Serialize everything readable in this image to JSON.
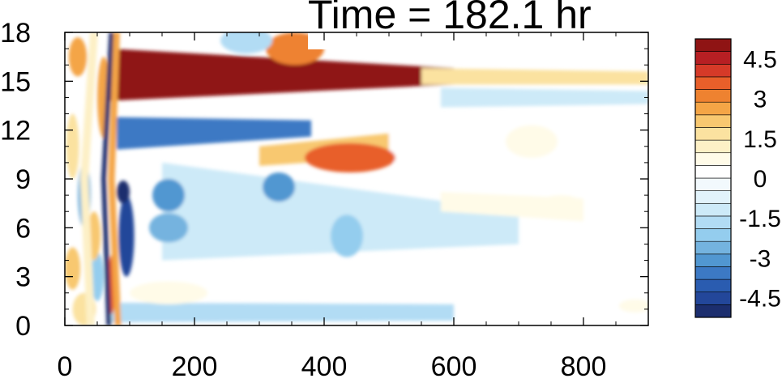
{
  "chart_data": {
    "type": "heatmap",
    "title": "Time = 182.1 hr",
    "xlabel": "",
    "ylabel": "",
    "xlim": [
      0,
      900
    ],
    "ylim": [
      0,
      18
    ],
    "x_ticks": [
      "0",
      "200",
      "400",
      "600",
      "800"
    ],
    "y_ticks": [
      "0",
      "3",
      "6",
      "9",
      "12",
      "15",
      "18"
    ],
    "colorbar": {
      "levels": [
        -5.25,
        -4.75,
        -4.25,
        -3.75,
        -3.25,
        -2.75,
        -2.25,
        -1.75,
        -1.25,
        -0.75,
        -0.25,
        0.25,
        0.75,
        1.25,
        1.75,
        2.25,
        2.75,
        3.25,
        3.75,
        4.25,
        4.75,
        5.25
      ],
      "colors": [
        "#1c2e6e",
        "#23479a",
        "#2a5cb0",
        "#3c79c4",
        "#5197d1",
        "#74b3df",
        "#94cdee",
        "#b2dcf4",
        "#cdeaf8",
        "#e2f3fb",
        "#f2f9fd",
        "#ffffff",
        "#fffbe8",
        "#fdf0c6",
        "#fbe2a0",
        "#f8c870",
        "#f4a546",
        "#ee8230",
        "#e85f2a",
        "#d63a28",
        "#b71f23",
        "#8f1414"
      ],
      "labels": [
        "4.5",
        "3",
        "1.5",
        "0",
        "-1.5",
        "-3",
        "-4.5"
      ],
      "label_values": [
        4.5,
        3,
        1.5,
        0,
        -1.5,
        -3,
        -4.5
      ]
    },
    "features": [
      {
        "shape": "band",
        "value": 6.0,
        "x": [
          70,
          600
        ],
        "y_at_start": [
          13.8,
          17.0
        ],
        "y_at_end": [
          14.8,
          15.8
        ]
      },
      {
        "shape": "band",
        "value": -3.5,
        "x": [
          80,
          380
        ],
        "y_at_start": [
          10.8,
          12.8
        ],
        "y_at_end": [
          11.6,
          12.6
        ]
      },
      {
        "shape": "band",
        "value": 2.5,
        "x": [
          300,
          600
        ],
        "y_at_start": [
          9.8,
          11.0
        ],
        "y_at_end": [
          10.6,
          12.2
        ]
      },
      {
        "shape": "band",
        "value": 0.7,
        "x": [
          500,
          900
        ],
        "y_at_start": [
          10.0,
          12.5
        ],
        "y_at_end": [
          9.5,
          13.5
        ]
      },
      {
        "shape": "band",
        "value": -5.0,
        "x": [
          70,
          250
        ],
        "y_at_start": [
          0.2,
          1.1
        ],
        "y_at_end": [
          0.3,
          1.0
        ]
      },
      {
        "shape": "band",
        "value": -1.5,
        "x": [
          70,
          600
        ],
        "y_at_start": [
          0.2,
          1.4
        ],
        "y_at_end": [
          0.3,
          1.3
        ]
      },
      {
        "shape": "band",
        "value": -1.0,
        "x": [
          150,
          700
        ],
        "y_at_start": [
          4.0,
          10.0
        ],
        "y_at_end": [
          5.0,
          7.0
        ]
      },
      {
        "shape": "band",
        "value": 2.0,
        "x": [
          550,
          900
        ],
        "y_at_start": [
          14.8,
          15.8
        ],
        "y_at_end": [
          14.8,
          15.6
        ]
      },
      {
        "shape": "band",
        "value": 0.8,
        "x": [
          580,
          800
        ],
        "y_at_start": [
          7.0,
          8.2
        ],
        "y_at_end": [
          6.4,
          7.8
        ]
      },
      {
        "shape": "band",
        "value": -1.0,
        "x": [
          580,
          900
        ],
        "y_at_start": [
          13.4,
          14.6
        ],
        "y_at_end": [
          13.6,
          14.4
        ]
      },
      {
        "shape": "blob",
        "value": -4.5,
        "x": 95,
        "y": 5.5,
        "rx": 12,
        "ry": 2.5
      },
      {
        "shape": "blob",
        "value": 3.0,
        "x": 20,
        "y": 16.5,
        "rx": 14,
        "ry": 1.2
      },
      {
        "shape": "blob",
        "value": 2.5,
        "x": 12,
        "y": 3.5,
        "rx": 12,
        "ry": 1.3
      },
      {
        "shape": "blob",
        "value": 2.0,
        "x": 30,
        "y": 1.0,
        "rx": 18,
        "ry": 1.0
      },
      {
        "shape": "blob",
        "value": 3.0,
        "x": 60,
        "y": 14.0,
        "rx": 10,
        "ry": 2.5
      },
      {
        "shape": "blob",
        "value": 2.0,
        "x": 12,
        "y": 11.0,
        "rx": 10,
        "ry": 2.0
      },
      {
        "shape": "blob",
        "value": -2.5,
        "x": 30,
        "y": 8.0,
        "rx": 10,
        "ry": 2.0
      },
      {
        "shape": "blob",
        "value": -2.0,
        "x": 50,
        "y": 3.0,
        "rx": 10,
        "ry": 1.5
      },
      {
        "shape": "blob",
        "value": 2.5,
        "x": 45,
        "y": 5.5,
        "rx": 10,
        "ry": 1.5
      },
      {
        "shape": "blob",
        "value": 4.0,
        "x": 72,
        "y": 2.5,
        "rx": 6,
        "ry": 1.8
      },
      {
        "shape": "blob",
        "value": -5.0,
        "x": 90,
        "y": 8.2,
        "rx": 10,
        "ry": 0.7
      },
      {
        "shape": "blob",
        "value": -3.0,
        "x": 160,
        "y": 8.0,
        "rx": 25,
        "ry": 1.0
      },
      {
        "shape": "blob",
        "value": -2.5,
        "x": 160,
        "y": 6.0,
        "rx": 30,
        "ry": 0.9
      },
      {
        "shape": "blob",
        "value": -3.0,
        "x": 330,
        "y": 8.5,
        "rx": 25,
        "ry": 0.9
      },
      {
        "shape": "blob",
        "value": -2.0,
        "x": 435,
        "y": 5.5,
        "rx": 25,
        "ry": 1.3
      },
      {
        "shape": "blob",
        "value": 1.0,
        "x": 160,
        "y": 2.0,
        "rx": 60,
        "ry": 0.7
      },
      {
        "shape": "blob",
        "value": 4.0,
        "x": 440,
        "y": 10.3,
        "rx": 70,
        "ry": 0.9
      },
      {
        "shape": "blob",
        "value": 1.2,
        "x": 720,
        "y": 11.3,
        "rx": 40,
        "ry": 1.0
      },
      {
        "shape": "blob",
        "value": 1.0,
        "x": 765,
        "y": 7.4,
        "rx": 35,
        "ry": 0.6
      },
      {
        "shape": "blob",
        "value": 3.5,
        "x": 355,
        "y": 17.0,
        "rx": 45,
        "ry": 1.0
      },
      {
        "shape": "blob",
        "value": -1.5,
        "x": 280,
        "y": 17.5,
        "rx": 40,
        "ry": 0.8
      },
      {
        "shape": "blob",
        "value": 1.0,
        "x": 880,
        "y": 1.2,
        "rx": 25,
        "ry": 0.4
      }
    ],
    "vertical_fronts": [
      {
        "x": [
          68,
          60,
          72
        ],
        "y": [
          0,
          9,
          18
        ],
        "value": -5.0,
        "width": 6
      },
      {
        "x": [
          82,
          72,
          80
        ],
        "y": [
          0,
          9,
          18
        ],
        "value": 3.0,
        "width": 8
      },
      {
        "x": [
          40,
          30,
          45
        ],
        "y": [
          0,
          9,
          18
        ],
        "value": 1.5,
        "width": 10
      }
    ]
  }
}
